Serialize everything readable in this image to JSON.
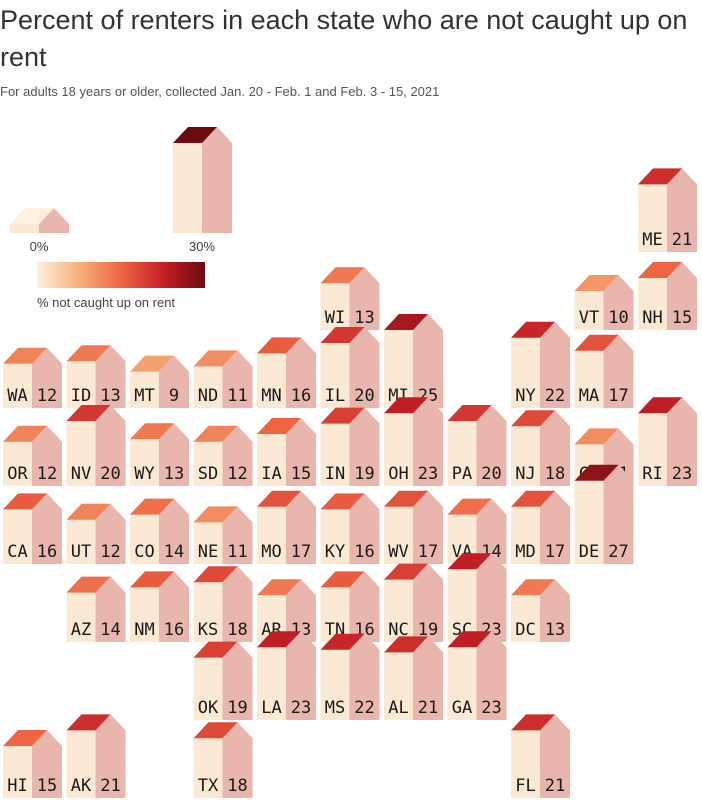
{
  "title": "Percent of renters in each state who are not caught up on rent",
  "subtitle": "For adults 18 years or older,  collected Jan. 20 - Feb. 1 and Feb. 3 - 15, 2021",
  "legend": {
    "min_label": "0%",
    "max_label": "30%",
    "bar_label": "% not caught up on rent",
    "scale_colors": [
      "#fdf0dd",
      "#f6b07c",
      "#ee6544",
      "#c52026",
      "#6b0a0f"
    ]
  },
  "colors": {
    "wall_front": "#fbe9d4",
    "wall_side": "#e8b6ad"
  },
  "chart_data": {
    "type": "tile map",
    "value_range": [
      0,
      30
    ],
    "states": [
      {
        "state": "ME",
        "value": 21
      },
      {
        "state": "WI",
        "value": 13
      },
      {
        "state": "VT",
        "value": 10
      },
      {
        "state": "NH",
        "value": 15
      },
      {
        "state": "WA",
        "value": 12
      },
      {
        "state": "ID",
        "value": 13
      },
      {
        "state": "MT",
        "value": 9
      },
      {
        "state": "ND",
        "value": 11
      },
      {
        "state": "MN",
        "value": 16
      },
      {
        "state": "IL",
        "value": 20
      },
      {
        "state": "MI",
        "value": 25
      },
      {
        "state": "NY",
        "value": 22
      },
      {
        "state": "MA",
        "value": 17
      },
      {
        "state": "OR",
        "value": 12
      },
      {
        "state": "NV",
        "value": 20
      },
      {
        "state": "WY",
        "value": 13
      },
      {
        "state": "SD",
        "value": 12
      },
      {
        "state": "IA",
        "value": 15
      },
      {
        "state": "IN",
        "value": 19
      },
      {
        "state": "OH",
        "value": 23
      },
      {
        "state": "PA",
        "value": 20
      },
      {
        "state": "NJ",
        "value": 18
      },
      {
        "state": "CT",
        "value": 11
      },
      {
        "state": "RI",
        "value": 23
      },
      {
        "state": "CA",
        "value": 16
      },
      {
        "state": "UT",
        "value": 12
      },
      {
        "state": "CO",
        "value": 14
      },
      {
        "state": "NE",
        "value": 11
      },
      {
        "state": "MO",
        "value": 17
      },
      {
        "state": "KY",
        "value": 16
      },
      {
        "state": "WV",
        "value": 17
      },
      {
        "state": "VA",
        "value": 14
      },
      {
        "state": "MD",
        "value": 17
      },
      {
        "state": "DE",
        "value": 27
      },
      {
        "state": "AZ",
        "value": 14
      },
      {
        "state": "NM",
        "value": 16
      },
      {
        "state": "KS",
        "value": 18
      },
      {
        "state": "AR",
        "value": 13
      },
      {
        "state": "TN",
        "value": 16
      },
      {
        "state": "NC",
        "value": 19
      },
      {
        "state": "SC",
        "value": 23
      },
      {
        "state": "DC",
        "value": 13
      },
      {
        "state": "OK",
        "value": 19
      },
      {
        "state": "LA",
        "value": 23
      },
      {
        "state": "MS",
        "value": 22
      },
      {
        "state": "AL",
        "value": 21
      },
      {
        "state": "GA",
        "value": 23
      },
      {
        "state": "HI",
        "value": 15
      },
      {
        "state": "AK",
        "value": 21
      },
      {
        "state": "TX",
        "value": 18
      },
      {
        "state": "FL",
        "value": 21
      }
    ]
  }
}
